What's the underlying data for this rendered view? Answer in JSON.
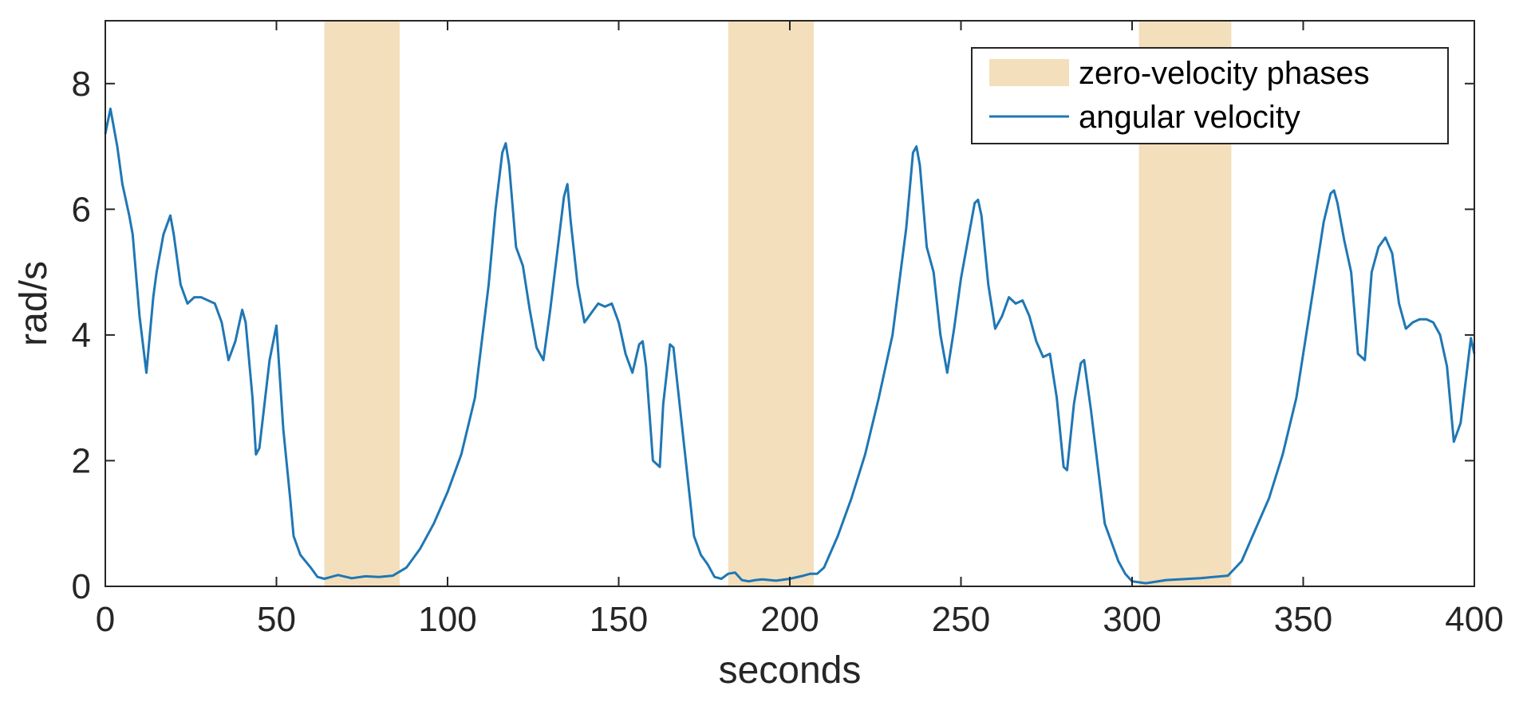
{
  "chart_data": {
    "type": "line",
    "xlabel": "seconds",
    "ylabel": "rad/s",
    "xlim": [
      0,
      400
    ],
    "ylim": [
      0,
      9
    ],
    "x_ticks": [
      0,
      50,
      100,
      150,
      200,
      250,
      300,
      350,
      400
    ],
    "y_ticks": [
      0,
      2,
      4,
      6,
      8
    ],
    "grid": false,
    "legend_position": "top-right",
    "colors": {
      "line": "#1f77b4",
      "shade": "#f3dfbc",
      "axis": "#262626"
    },
    "shaded_regions": {
      "name": "zero-velocity phases",
      "ranges": [
        [
          64,
          86
        ],
        [
          182,
          207
        ],
        [
          302,
          329
        ]
      ]
    },
    "series": [
      {
        "name": "angular velocity",
        "x": [
          0,
          1.5,
          3.5,
          5,
          7,
          8,
          10,
          12,
          14,
          15,
          17,
          19,
          20,
          22,
          24,
          26,
          28,
          32,
          34,
          36,
          38,
          40,
          41,
          43,
          44,
          45,
          48,
          50,
          52,
          54,
          55,
          57,
          60,
          62,
          64,
          66,
          68,
          72,
          76,
          80,
          84,
          88,
          92,
          96,
          100,
          104,
          108,
          112,
          114,
          116,
          117,
          118,
          120,
          122,
          124,
          126,
          128,
          130,
          132,
          134,
          135,
          136,
          138,
          140,
          142,
          144,
          146,
          148,
          150,
          152,
          154,
          156,
          157,
          158,
          160,
          162,
          163,
          165,
          166,
          167,
          170,
          172,
          174,
          176,
          178,
          180,
          182,
          184,
          186,
          188,
          190,
          192,
          196,
          200,
          204,
          206,
          208,
          210,
          214,
          218,
          222,
          226,
          230,
          234,
          236,
          237,
          238,
          240,
          242,
          244,
          246,
          248,
          250,
          254,
          255,
          256,
          258,
          260,
          262,
          264,
          266,
          268,
          270,
          272,
          274,
          276,
          278,
          280,
          281,
          283,
          285,
          286,
          288,
          290,
          292,
          294,
          296,
          298,
          300,
          304,
          310,
          320,
          328,
          332,
          336,
          340,
          344,
          348,
          352,
          356,
          358,
          359,
          360,
          362,
          364,
          366,
          368,
          370,
          372,
          374,
          376,
          378,
          380,
          382,
          384,
          386,
          388,
          390,
          392,
          394,
          396,
          398,
          399,
          400
        ],
        "y": [
          7.2,
          7.6,
          7.0,
          6.4,
          5.9,
          5.6,
          4.3,
          3.4,
          4.6,
          5.0,
          5.6,
          5.9,
          5.6,
          4.8,
          4.5,
          4.6,
          4.6,
          4.5,
          4.2,
          3.6,
          3.9,
          4.4,
          4.2,
          3.0,
          2.1,
          2.2,
          3.6,
          4.15,
          2.5,
          1.4,
          0.8,
          0.5,
          0.3,
          0.15,
          0.12,
          0.15,
          0.18,
          0.13,
          0.16,
          0.15,
          0.17,
          0.3,
          0.6,
          1.0,
          1.5,
          2.1,
          3.0,
          4.8,
          6.0,
          6.9,
          7.05,
          6.7,
          5.4,
          5.1,
          4.4,
          3.8,
          3.6,
          4.4,
          5.3,
          6.2,
          6.4,
          5.8,
          4.8,
          4.2,
          4.35,
          4.5,
          4.45,
          4.5,
          4.2,
          3.7,
          3.4,
          3.85,
          3.9,
          3.5,
          2.0,
          1.9,
          2.9,
          3.85,
          3.8,
          3.3,
          1.8,
          0.8,
          0.5,
          0.35,
          0.15,
          0.12,
          0.2,
          0.22,
          0.1,
          0.08,
          0.1,
          0.11,
          0.09,
          0.12,
          0.17,
          0.2,
          0.2,
          0.3,
          0.8,
          1.4,
          2.1,
          3.0,
          4.0,
          5.7,
          6.9,
          7.0,
          6.7,
          5.4,
          5.0,
          4.0,
          3.4,
          4.1,
          4.9,
          6.1,
          6.15,
          5.9,
          4.8,
          4.1,
          4.3,
          4.6,
          4.5,
          4.55,
          4.3,
          3.9,
          3.65,
          3.7,
          3.0,
          1.9,
          1.85,
          2.9,
          3.55,
          3.6,
          2.8,
          1.9,
          1.0,
          0.7,
          0.4,
          0.2,
          0.08,
          0.05,
          0.1,
          0.13,
          0.17,
          0.4,
          0.9,
          1.4,
          2.1,
          3.0,
          4.4,
          5.8,
          6.25,
          6.3,
          6.1,
          5.5,
          5.0,
          3.7,
          3.6,
          5.0,
          5.4,
          5.55,
          5.3,
          4.5,
          4.1,
          4.2,
          4.25,
          4.25,
          4.2,
          4.0,
          3.5,
          2.3,
          2.6,
          3.5,
          3.95,
          3.7
        ]
      }
    ]
  }
}
